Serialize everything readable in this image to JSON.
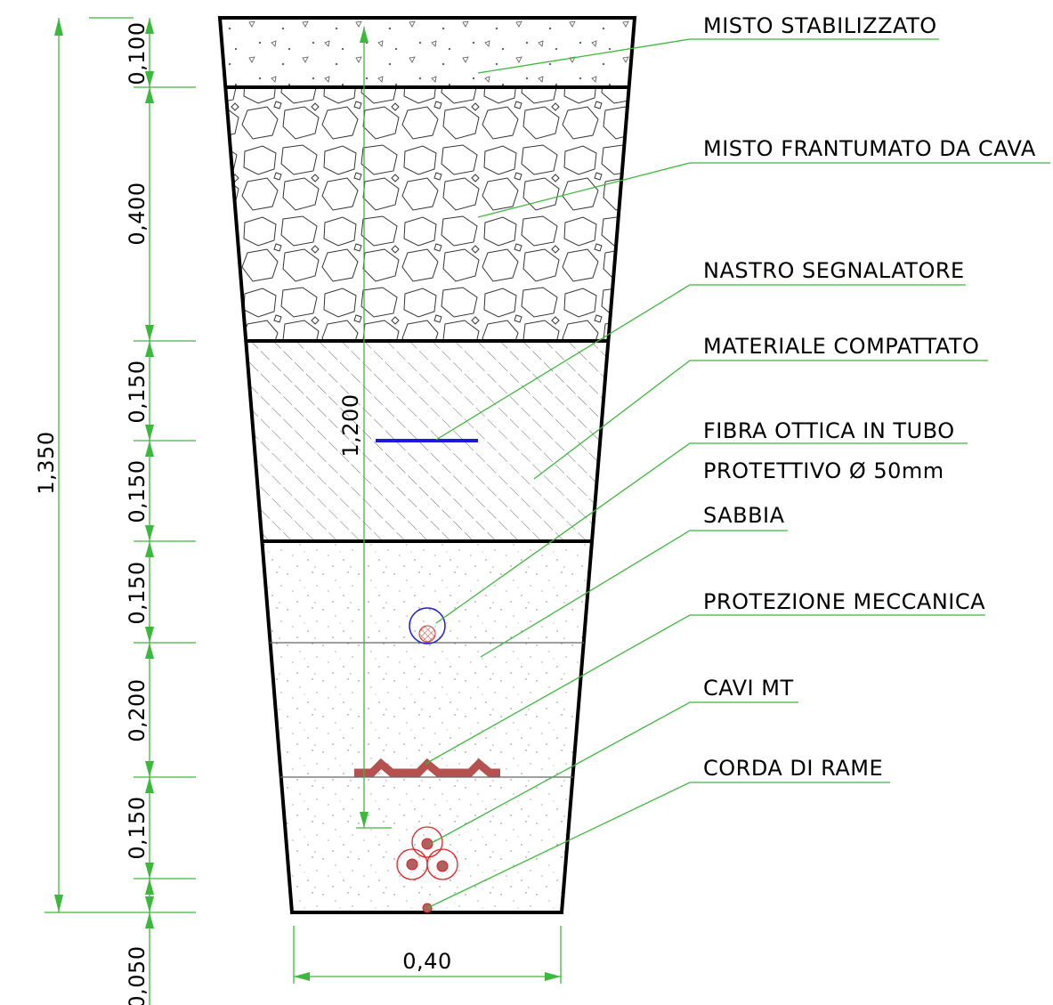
{
  "labels": [
    "MISTO STABILIZZATO",
    "MISTO FRANTUMATO DA CAVA",
    "NASTRO SEGNALATORE",
    "MATERIALE COMPATTATO",
    "FIBRA OTTICA IN TUBO",
    "PROTETTIVO Ø 50mm",
    "SABBIA",
    "PROTEZIONE MECCANICA",
    "CAVI MT",
    "CORDA DI RAME"
  ],
  "layer_dimensions": [
    "0,100",
    "0,400",
    "0,150",
    "0,150",
    "0,150",
    "0,200",
    "0,150",
    "0,050"
  ],
  "total_depth": "1,350",
  "cable_depth": "1,200",
  "base_width": "0,40"
}
